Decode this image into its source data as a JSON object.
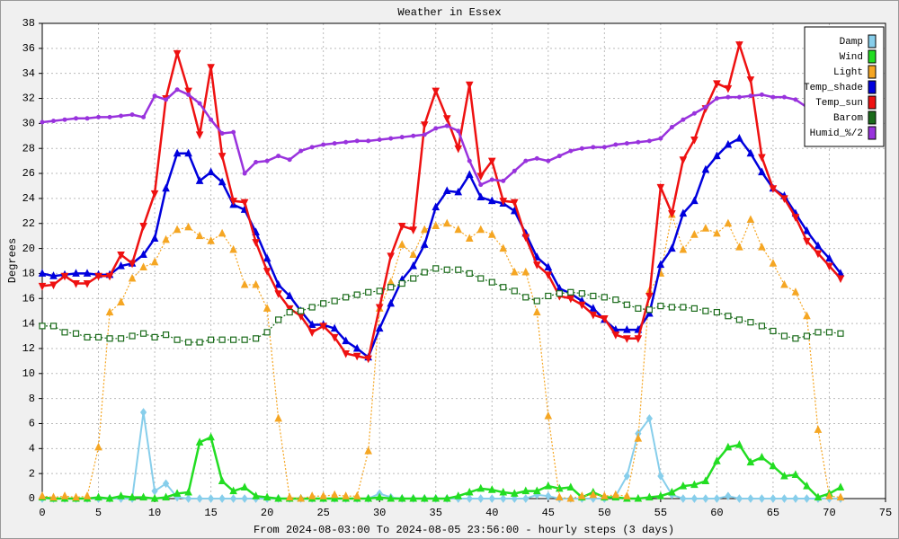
{
  "chart_data": {
    "type": "line",
    "title": "Weather in Essex",
    "ylabel": "Degrees",
    "xlabel": "From 2024-08-03:00 To 2024-08-05 23:56:00 - hourly steps (3 days)",
    "x": [
      0,
      1,
      2,
      3,
      4,
      5,
      6,
      7,
      8,
      9,
      10,
      11,
      12,
      13,
      14,
      15,
      16,
      17,
      18,
      19,
      20,
      21,
      22,
      23,
      24,
      25,
      26,
      27,
      28,
      29,
      30,
      31,
      32,
      33,
      34,
      35,
      36,
      37,
      38,
      39,
      40,
      41,
      42,
      43,
      44,
      45,
      46,
      47,
      48,
      49,
      50,
      51,
      52,
      53,
      54,
      55,
      56,
      57,
      58,
      59,
      60,
      61,
      62,
      63,
      64,
      65,
      66,
      67,
      68,
      69,
      70,
      71
    ],
    "xlim": [
      0,
      75
    ],
    "xticks": [
      0,
      5,
      10,
      15,
      20,
      25,
      30,
      35,
      40,
      45,
      50,
      55,
      60,
      65,
      70,
      75
    ],
    "ylim": [
      0,
      38
    ],
    "yticks": [
      0,
      2,
      4,
      6,
      8,
      10,
      12,
      14,
      16,
      18,
      20,
      22,
      24,
      26,
      28,
      30,
      32,
      34,
      36,
      38
    ],
    "grid": true,
    "legend": "upper right",
    "series": [
      {
        "name": "Damp",
        "color": "#87ceeb",
        "marker": "diamond",
        "width": 2,
        "values": [
          0,
          0,
          0,
          0,
          0,
          0,
          0,
          0,
          0,
          6.9,
          0.6,
          1.2,
          0.1,
          0,
          0,
          0,
          0,
          0,
          0,
          0,
          0,
          0,
          0,
          0,
          0,
          0,
          0,
          0,
          0,
          0,
          0.4,
          0.1,
          0,
          0,
          0,
          0,
          0,
          0,
          0,
          0,
          0,
          0,
          0,
          0,
          0.3,
          0.2,
          0,
          0,
          0,
          0,
          0,
          0.2,
          1.8,
          5.2,
          6.4,
          1.8,
          0.3,
          0,
          0,
          0,
          0,
          0.2,
          0,
          0,
          0,
          0,
          0,
          0,
          0,
          0,
          0,
          0
        ]
      },
      {
        "name": "Wind",
        "color": "#22dd22",
        "marker": "triangle",
        "width": 2.5,
        "values": [
          0.1,
          0,
          0,
          0,
          0,
          0.1,
          0,
          0.2,
          0.1,
          0.1,
          0,
          0.1,
          0.4,
          0.5,
          4.5,
          4.9,
          1.4,
          0.6,
          0.9,
          0.2,
          0.1,
          0,
          0,
          0,
          0,
          0,
          0,
          0,
          0,
          0,
          0.1,
          0,
          0,
          0,
          0,
          0,
          0,
          0.2,
          0.5,
          0.8,
          0.7,
          0.5,
          0.4,
          0.6,
          0.6,
          1,
          0.8,
          0.9,
          0.1,
          0.5,
          0.1,
          0.1,
          0,
          0,
          0.1,
          0.2,
          0.5,
          1,
          1.1,
          1.4,
          3,
          4.1,
          4.3,
          2.9,
          3.3,
          2.6,
          1.8,
          1.9,
          1,
          0.1,
          0.4,
          0.9
        ]
      },
      {
        "name": "Light",
        "color": "#f5a623",
        "marker": "triangle",
        "width": 1.2,
        "dash": true,
        "values": [
          0.2,
          0.1,
          0.2,
          0.1,
          0.2,
          4.1,
          14.9,
          15.7,
          17.6,
          18.5,
          18.9,
          20.7,
          21.5,
          21.7,
          21,
          20.6,
          21.2,
          19.9,
          17.1,
          17.1,
          15.2,
          6.4,
          0.1,
          0,
          0.2,
          0.2,
          0.3,
          0.2,
          0.2,
          3.8,
          15.2,
          17.3,
          20.3,
          19.5,
          21.5,
          21.8,
          22,
          21.5,
          20.8,
          21.5,
          21.1,
          20,
          18.1,
          18.1,
          14.9,
          6.6,
          0.1,
          0,
          0.2,
          0.3,
          0.2,
          0.3,
          0.2,
          4.8,
          16.6,
          18,
          22.7,
          19.9,
          21.1,
          21.6,
          21.2,
          22,
          20.1,
          22.3,
          20.1,
          18.8,
          17.1,
          16.5,
          14.6,
          5.5,
          0.2,
          0.1
        ]
      },
      {
        "name": "Temp_shade",
        "color": "#0000dd",
        "marker": "triangle",
        "width": 2.5,
        "values": [
          18,
          17.8,
          17.9,
          18,
          18,
          17.9,
          17.9,
          18.6,
          18.8,
          19.5,
          20.8,
          24.8,
          27.6,
          27.6,
          25.4,
          26.1,
          25.3,
          23.5,
          23.1,
          21.3,
          19.2,
          17.1,
          16.2,
          15,
          13.9,
          13.9,
          13.6,
          12.6,
          12,
          11.3,
          13.6,
          15.6,
          17.5,
          18.6,
          20.3,
          23.3,
          24.6,
          24.5,
          25.9,
          24.1,
          23.8,
          23.6,
          23,
          21.2,
          19.3,
          18.5,
          16.8,
          16.4,
          15.8,
          15.2,
          14.3,
          13.5,
          13.5,
          13.5,
          14.8,
          18.7,
          20,
          22.8,
          23.8,
          26.3,
          27.4,
          28.3,
          28.8,
          27.6,
          26.1,
          24.8,
          24.2,
          22.8,
          21.4,
          20.2,
          19.2,
          18
        ]
      },
      {
        "name": "Temp_sun",
        "color": "#ee1111",
        "marker": "tridown",
        "width": 2.5,
        "values": [
          17,
          17.1,
          17.8,
          17.2,
          17.2,
          17.8,
          17.8,
          19.5,
          18.8,
          21.8,
          24.4,
          32,
          35.6,
          32.6,
          29.1,
          34.5,
          27.4,
          23.8,
          23.7,
          20.5,
          18.2,
          16.4,
          15.2,
          14.6,
          13.3,
          13.8,
          12.9,
          11.6,
          11.4,
          11.2,
          15.3,
          19.4,
          21.8,
          21.5,
          29.9,
          32.6,
          30.4,
          28,
          33.1,
          25.8,
          27,
          23.8,
          23.7,
          20.9,
          18.7,
          17.9,
          16.2,
          16,
          15.5,
          14.7,
          14.4,
          13.1,
          12.8,
          12.8,
          16.2,
          24.9,
          22.8,
          27.1,
          28.7,
          31.2,
          33.2,
          32.8,
          36.3,
          33.5,
          27.3,
          24.8,
          24,
          22.5,
          20.6,
          19.6,
          18.6,
          17.6
        ]
      },
      {
        "name": "Barom",
        "color": "#1a6b1a",
        "marker": "square",
        "width": 1.2,
        "dash": true,
        "values": [
          13.8,
          13.8,
          13.3,
          13.2,
          12.9,
          12.9,
          12.8,
          12.8,
          13,
          13.2,
          12.9,
          13.1,
          12.7,
          12.5,
          12.5,
          12.7,
          12.7,
          12.7,
          12.7,
          12.8,
          13.3,
          14.3,
          14.9,
          15,
          15.3,
          15.6,
          15.8,
          16.1,
          16.3,
          16.5,
          16.6,
          16.9,
          17.2,
          17.6,
          18.1,
          18.4,
          18.3,
          18.3,
          18,
          17.6,
          17.3,
          16.9,
          16.6,
          16.1,
          15.8,
          16.2,
          16.4,
          16.5,
          16.4,
          16.2,
          16.1,
          15.9,
          15.5,
          15.2,
          15.1,
          15.4,
          15.3,
          15.3,
          15.2,
          15,
          14.9,
          14.6,
          14.3,
          14.1,
          13.8,
          13.4,
          13,
          12.8,
          13,
          13.3,
          13.3,
          13.2
        ]
      },
      {
        "name": "Humid_%/2",
        "color": "#9933dd",
        "marker": "dot",
        "width": 2.5,
        "values": [
          30.1,
          30.2,
          30.3,
          30.4,
          30.4,
          30.5,
          30.5,
          30.6,
          30.7,
          30.5,
          32.2,
          31.9,
          32.7,
          32.3,
          31.6,
          30.3,
          29.2,
          29.3,
          26,
          26.9,
          27,
          27.4,
          27.1,
          27.8,
          28.1,
          28.3,
          28.4,
          28.5,
          28.6,
          28.6,
          28.7,
          28.8,
          28.9,
          29,
          29.1,
          29.6,
          29.8,
          29.4,
          27,
          25.1,
          25.5,
          25.4,
          26.2,
          27,
          27.2,
          27,
          27.4,
          27.8,
          28,
          28.1,
          28.1,
          28.3,
          28.4,
          28.5,
          28.6,
          28.8,
          29.7,
          30.3,
          30.8,
          31.3,
          32,
          32.1,
          32.1,
          32.2,
          32.3,
          32.1,
          32.1,
          31.9,
          31.3,
          30.8,
          30.4,
          30.2
        ]
      }
    ]
  }
}
